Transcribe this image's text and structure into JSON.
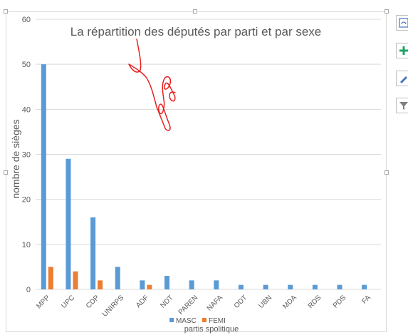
{
  "chart_data": {
    "type": "bar",
    "title": "La répartition des députés par parti et par sexe",
    "xlabel": "partis spolitique",
    "ylabel": "nombre de sièges",
    "ylim": [
      0,
      60
    ],
    "yticks": [
      0,
      10,
      20,
      30,
      40,
      50,
      60
    ],
    "grid": true,
    "legend": "bottom",
    "categories": [
      "MPP",
      "UPC",
      "CDP",
      "UNIRPS",
      "ADF",
      "NDT",
      "PAREN",
      "NAFA",
      "ODT",
      "UBN",
      "MDA",
      "RDS",
      "PDS",
      "FA"
    ],
    "series": [
      {
        "name": "MASC",
        "color": "#5b9bd5",
        "values": [
          50,
          29,
          16,
          5,
          2,
          3,
          2,
          2,
          1,
          1,
          1,
          1,
          1,
          1
        ]
      },
      {
        "name": "FEMI",
        "color": "#ed7d31",
        "values": [
          5,
          4,
          2,
          0,
          1,
          0,
          0,
          0,
          0,
          0,
          0,
          0,
          0,
          0
        ]
      }
    ]
  },
  "toolbar": {
    "icons": [
      "chart-layout-icon",
      "chart-elements-plus-icon",
      "chart-styles-brush-icon",
      "chart-filter-icon"
    ]
  },
  "annotation": {
    "type": "handwritten-scribble",
    "color": "#e8201f"
  }
}
